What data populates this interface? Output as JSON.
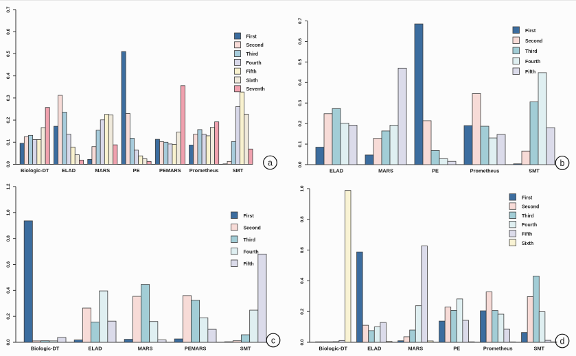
{
  "page": {
    "background": "#fcfcfc"
  },
  "chart_data": [
    {
      "id": "a",
      "type": "bar",
      "panel_label": "a",
      "title": "",
      "xlabel": "",
      "ylabel": "",
      "ylim": [
        0,
        0.7
      ],
      "yticks": [
        0,
        0.1,
        0.2,
        0.3,
        0.4,
        0.5,
        0.6,
        0.7
      ],
      "grid": false,
      "legend_position": "inside-top-right",
      "categories": [
        "Biologic-DT",
        "ELAD",
        "MARS",
        "PE",
        "PEMARS",
        "Prometheus",
        "SMT"
      ],
      "series": [
        {
          "name": "First",
          "color": "#3C6D9F",
          "values": [
            0.095,
            0.172,
            0.022,
            0.51,
            0.113,
            0.087,
            0.002
          ]
        },
        {
          "name": "Second",
          "color": "#F7DBD7",
          "values": [
            0.125,
            0.312,
            0.08,
            0.23,
            0.102,
            0.136,
            0.013
          ]
        },
        {
          "name": "Third",
          "color": "#A7CCDC",
          "values": [
            0.131,
            0.236,
            0.154,
            0.118,
            0.1,
            0.157,
            0.103
          ]
        },
        {
          "name": "Fourth",
          "color": "#D8D8E9",
          "values": [
            0.112,
            0.136,
            0.201,
            0.064,
            0.092,
            0.136,
            0.261
          ]
        },
        {
          "name": "Fifth",
          "color": "#F9F2CF",
          "values": [
            0.112,
            0.078,
            0.226,
            0.038,
            0.09,
            0.129,
            0.327
          ]
        },
        {
          "name": "Sixth",
          "color": "#F0EADC",
          "values": [
            0.166,
            0.043,
            0.223,
            0.025,
            0.146,
            0.167,
            0.227
          ]
        },
        {
          "name": "Seventh",
          "color": "#F0A1AE",
          "values": [
            0.257,
            0.019,
            0.088,
            0.013,
            0.356,
            0.192,
            0.069
          ]
        }
      ]
    },
    {
      "id": "b",
      "type": "bar",
      "panel_label": "b",
      "title": "",
      "xlabel": "",
      "ylabel": "",
      "ylim": [
        0,
        0.7
      ],
      "yticks": [
        0,
        0.1,
        0.2,
        0.3,
        0.4,
        0.5,
        0.6,
        0.7
      ],
      "grid": false,
      "legend_position": "inside-top-right",
      "categories": [
        "ELAD",
        "MARS",
        "PE",
        "Prometheus",
        "SMT"
      ],
      "series": [
        {
          "name": "First",
          "color": "#3C6D9F",
          "values": [
            0.085,
            0.047,
            0.685,
            0.19,
            0.004
          ]
        },
        {
          "name": "Second",
          "color": "#F7DBD7",
          "values": [
            0.248,
            0.128,
            0.214,
            0.346,
            0.066
          ]
        },
        {
          "name": "Third",
          "color": "#A2CDD6",
          "values": [
            0.273,
            0.164,
            0.069,
            0.187,
            0.306
          ]
        },
        {
          "name": "Fourth",
          "color": "#DFEFF1",
          "values": [
            0.202,
            0.192,
            0.029,
            0.13,
            0.448
          ]
        },
        {
          "name": "Fifth",
          "color": "#DBDBEA",
          "values": [
            0.192,
            0.47,
            0.016,
            0.147,
            0.18
          ]
        }
      ]
    },
    {
      "id": "c",
      "type": "bar",
      "panel_label": "c",
      "title": "",
      "xlabel": "",
      "ylabel": "",
      "ylim": [
        0,
        1.2
      ],
      "yticks": [
        0,
        0.2,
        0.4,
        0.6,
        0.8,
        1.0,
        1.2
      ],
      "grid": false,
      "legend_position": "inside-top-right",
      "categories": [
        "Biologic-DT",
        "ELAD",
        "MARS",
        "PEMARS",
        "SMT"
      ],
      "series": [
        {
          "name": "First",
          "color": "#3C6D9F",
          "values": [
            0.936,
            0.018,
            0.023,
            0.026,
            0.004
          ]
        },
        {
          "name": "Second",
          "color": "#F7DBD7",
          "values": [
            0.011,
            0.264,
            0.354,
            0.36,
            0.012
          ]
        },
        {
          "name": "Third",
          "color": "#A2CDD6",
          "values": [
            0.012,
            0.156,
            0.446,
            0.324,
            0.058
          ]
        },
        {
          "name": "Fourth",
          "color": "#DFEFF1",
          "values": [
            0.011,
            0.396,
            0.16,
            0.189,
            0.248
          ]
        },
        {
          "name": "Fifth",
          "color": "#DBDBEA",
          "values": [
            0.037,
            0.163,
            0.018,
            0.1,
            0.68
          ]
        }
      ]
    },
    {
      "id": "d",
      "type": "bar",
      "panel_label": "d",
      "title": "",
      "xlabel": "",
      "ylabel": "",
      "ylim": [
        0,
        1.0
      ],
      "yticks": [
        0,
        0.2,
        0.4,
        0.6,
        0.8,
        1.0
      ],
      "grid": false,
      "legend_position": "inside-top-right",
      "categories": [
        "Biologic-DT",
        "ELAD",
        "MARS",
        "PE",
        "Prometheus",
        "SMT"
      ],
      "series": [
        {
          "name": "First",
          "color": "#3C6D9F",
          "values": [
            0.003,
            0.588,
            0.01,
            0.138,
            0.205,
            0.064
          ]
        },
        {
          "name": "Second",
          "color": "#F7DBD7",
          "values": [
            0.003,
            0.111,
            0.036,
            0.229,
            0.328,
            0.297
          ]
        },
        {
          "name": "Third",
          "color": "#A2CDD6",
          "values": [
            0.003,
            0.076,
            0.08,
            0.208,
            0.207,
            0.431
          ]
        },
        {
          "name": "Fourth",
          "color": "#DFEFF1",
          "values": [
            0.004,
            0.1,
            0.238,
            0.282,
            0.183,
            0.199
          ]
        },
        {
          "name": "Fifth",
          "color": "#DBDBEA",
          "values": [
            0.012,
            0.129,
            0.627,
            0.143,
            0.085,
            0.013
          ]
        },
        {
          "name": "Sixth",
          "color": "#F9F3D4",
          "values": [
            0.988,
            0.006,
            0.009,
            0.003,
            0.001,
            0.001
          ]
        }
      ]
    }
  ]
}
